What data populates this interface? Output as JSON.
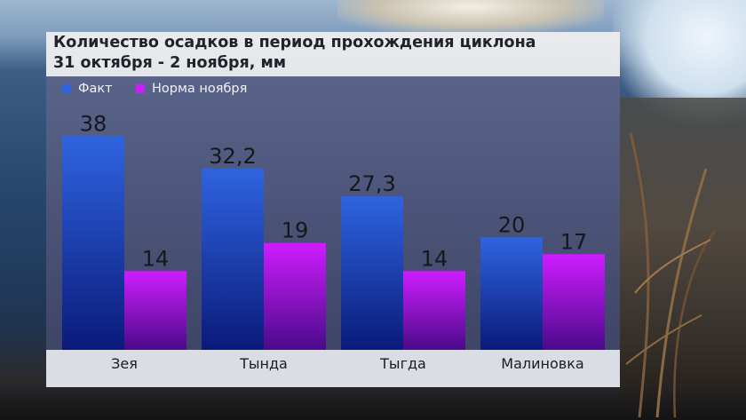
{
  "title": {
    "line1": "Количество осадков  в период прохождения циклона",
    "line2": "31 октября - 2 ноября, мм"
  },
  "colors": {
    "fact_top": "#2f64e0",
    "fact_bottom": "#0a1a7a",
    "norm_top": "#cf1cff",
    "norm_bottom": "#4a0a8a",
    "label_dark": "#16171c",
    "axis_text": "#1c1c22"
  },
  "chart_data": {
    "type": "bar",
    "title": "Количество осадков  в период прохождения циклона 31 октября - 2 ноября, мм",
    "categories": [
      "Зея",
      "Тында",
      "Тыгда",
      "Малиновка"
    ],
    "series": [
      {
        "name": "Факт",
        "values": [
          38,
          32.2,
          27.3,
          20
        ],
        "labels": [
          "38",
          "32,2",
          "27,3",
          "20"
        ]
      },
      {
        "name": "Норма ноября",
        "values": [
          14,
          19,
          14,
          17
        ],
        "labels": [
          "14",
          "19",
          "14",
          "17"
        ]
      }
    ],
    "ylim": [
      0,
      42
    ],
    "grid": false,
    "legend_position": "top-left"
  }
}
